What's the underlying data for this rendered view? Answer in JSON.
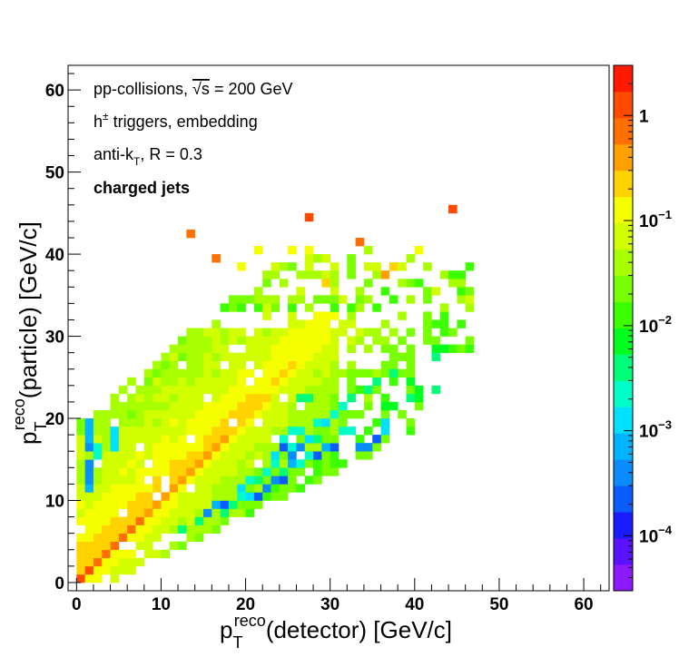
{
  "chart_data": {
    "type": "heatmap",
    "annotations": [
      {
        "text": "pp-collisions, √s = 200 GeV",
        "bold": false
      },
      {
        "text": "h± triggers, embedding",
        "bold": false
      },
      {
        "text": "anti-kT, R = 0.3",
        "bold": false
      },
      {
        "text": "charged jets",
        "bold": true
      }
    ],
    "xlabel": "p_T^reco(detector) [GeV/c]",
    "ylabel": "p_T^reco(particle) [GeV/c]",
    "xlabel_parts": {
      "main": "p",
      "sub": "T",
      "sup": "reco",
      "rest": "(detector) [GeV/c]"
    },
    "ylabel_parts": {
      "main": "p",
      "sub": "T",
      "sup": "reco",
      "rest": "(particle) [GeV/c]"
    },
    "xlim": [
      -1,
      63
    ],
    "ylim": [
      -1,
      63
    ],
    "x_ticks": [
      "0",
      "10",
      "20",
      "30",
      "40",
      "50",
      "60"
    ],
    "y_ticks": [
      "0",
      "10",
      "20",
      "30",
      "40",
      "50",
      "60"
    ],
    "z_scale": "log",
    "zlim": [
      3e-05,
      3
    ],
    "colorbar_labels": [
      {
        "value": 1,
        "label": "1"
      },
      {
        "value": 0.1,
        "label": "10",
        "exp": "−1"
      },
      {
        "value": 0.01,
        "label": "10",
        "exp": "−2"
      },
      {
        "value": 0.001,
        "label": "10",
        "exp": "−3"
      },
      {
        "value": 0.0001,
        "label": "10",
        "exp": "−4"
      }
    ],
    "colors": {
      "frame": "#000000",
      "palette": [
        "#8c1aff",
        "#5a12ff",
        "#1a1aff",
        "#0a5cff",
        "#0a8cff",
        "#00b4ff",
        "#00e0ff",
        "#00ffc8",
        "#00ff78",
        "#00ff1e",
        "#3cff00",
        "#78ff00",
        "#a8ff00",
        "#d2ff00",
        "#f5ff00",
        "#ffd200",
        "#ffa000",
        "#ff7000",
        "#ff4a00",
        "#ff1a00"
      ]
    },
    "bin_size": 1,
    "bins": [
      [
        0,
        0,
        1.2
      ],
      [
        1,
        1,
        1.0
      ],
      [
        2,
        2,
        0.9
      ],
      [
        3,
        3,
        0.8
      ],
      [
        4,
        4,
        0.7
      ],
      [
        5,
        5,
        0.7
      ],
      [
        6,
        6,
        0.6
      ],
      [
        7,
        7,
        0.6
      ],
      [
        8,
        8,
        0.5
      ],
      [
        9,
        9,
        0.5
      ],
      [
        10,
        10,
        0.5
      ],
      [
        11,
        11,
        0.4
      ],
      [
        12,
        12,
        0.4
      ],
      [
        13,
        13,
        0.4
      ],
      [
        14,
        14,
        0.3
      ],
      [
        15,
        15,
        0.3
      ],
      [
        16,
        16,
        0.3
      ],
      [
        17,
        17,
        0.3
      ],
      [
        18,
        18,
        0.25
      ],
      [
        19,
        19,
        0.25
      ],
      [
        20,
        20,
        0.2
      ],
      [
        21,
        21,
        0.2
      ],
      [
        22,
        22,
        0.2
      ],
      [
        23,
        23,
        0.15
      ],
      [
        24,
        24,
        0.15
      ],
      [
        25,
        25,
        0.15
      ],
      [
        26,
        26,
        0.12
      ],
      [
        27,
        27,
        0.1
      ],
      [
        28,
        28,
        0.1
      ],
      [
        29,
        29,
        0.1
      ],
      [
        30,
        30,
        0.08
      ],
      [
        31,
        31,
        0.06
      ],
      [
        32,
        32,
        0.05
      ],
      [
        33,
        33,
        0.04
      ],
      [
        34,
        34,
        0.035
      ],
      [
        13,
        42,
        0.9
      ],
      [
        16,
        39,
        0.9
      ],
      [
        27,
        44,
        1.0
      ],
      [
        33,
        41,
        0.9
      ],
      [
        44,
        45,
        1.0
      ],
      [
        37,
        38,
        0.25
      ],
      [
        36,
        37,
        0.3
      ],
      [
        29,
        36,
        0.2
      ],
      [
        25,
        40,
        0.1
      ],
      [
        21,
        40,
        0.1
      ],
      [
        40,
        40,
        0.1
      ],
      [
        27,
        40,
        0.1
      ],
      [
        19,
        38,
        0.1
      ],
      [
        30,
        38,
        0.08
      ],
      [
        27,
        38,
        0.08
      ],
      [
        38,
        38,
        0.07
      ],
      [
        34,
        38,
        0.08
      ],
      [
        4,
        18,
        0.0015
      ],
      [
        4,
        17,
        0.0015
      ],
      [
        2,
        16,
        0.002
      ],
      [
        2,
        15,
        0.002
      ],
      [
        4,
        16,
        0.0012
      ],
      [
        1,
        14,
        0.0005
      ],
      [
        1,
        13,
        0.0003
      ],
      [
        1,
        12,
        0.0004
      ],
      [
        1,
        11,
        0.0008
      ],
      [
        1,
        16,
        0.0003
      ],
      [
        1,
        17,
        0.0008
      ],
      [
        1,
        18,
        0.0008
      ],
      [
        1,
        19,
        0.0008
      ],
      [
        24,
        16,
        0.0002
      ],
      [
        26,
        16,
        0.0003
      ],
      [
        25,
        15,
        0.0004
      ],
      [
        25,
        14,
        0.0006
      ],
      [
        23,
        12,
        0.0003
      ],
      [
        24,
        12,
        0.0002
      ],
      [
        21,
        10,
        0.0002
      ],
      [
        22,
        11,
        0.0003
      ],
      [
        19,
        11,
        0.0015
      ],
      [
        20,
        10,
        0.0015
      ],
      [
        16,
        9,
        0.0008
      ],
      [
        17,
        9,
        0.0002
      ],
      [
        15,
        8,
        0.0003
      ],
      [
        28,
        15,
        0.0002
      ],
      [
        30,
        16,
        0.0002
      ],
      [
        33,
        16,
        0.0005
      ],
      [
        35,
        17,
        0.0002
      ],
      [
        34,
        16,
        0.0003
      ],
      [
        36,
        18,
        0.0015
      ],
      [
        36,
        19,
        0.0015
      ],
      [
        32,
        18,
        0.002
      ],
      [
        31,
        18,
        0.002
      ],
      [
        29,
        16,
        0.0008
      ],
      [
        34,
        23,
        0.003
      ],
      [
        39,
        22,
        0.003
      ],
      [
        42,
        23,
        0.003
      ],
      [
        35,
        24,
        0.004
      ],
      [
        37,
        25,
        0.004
      ],
      [
        32,
        22,
        0.003
      ],
      [
        42,
        27,
        0.004
      ],
      [
        41,
        34,
        0.02
      ],
      [
        26,
        22,
        0.003
      ],
      [
        27,
        22,
        0.003
      ],
      [
        31,
        21,
        0.002
      ],
      [
        28,
        19,
        0.002
      ],
      [
        29,
        19,
        0.0015
      ],
      [
        30,
        20,
        0.002
      ],
      [
        27,
        17,
        0.0015
      ],
      [
        28,
        17,
        0.003
      ],
      [
        26,
        18,
        0.002
      ],
      [
        25,
        18,
        0.002
      ],
      [
        24,
        17,
        0.002
      ],
      [
        25,
        16,
        0.0025
      ],
      [
        23,
        15,
        0.0015
      ],
      [
        22,
        13,
        0.002
      ],
      [
        21,
        12,
        0.003
      ],
      [
        20,
        12,
        0.002
      ],
      [
        19,
        10,
        0.002
      ],
      [
        17,
        8,
        0.003
      ],
      [
        14,
        7,
        0.003
      ],
      [
        12,
        6,
        0.003
      ],
      [
        18,
        9,
        0.003
      ],
      [
        23,
        14,
        0.002
      ],
      [
        24,
        13,
        0.003
      ],
      [
        26,
        14,
        0.002
      ],
      [
        27,
        15,
        0.002
      ]
    ]
  }
}
